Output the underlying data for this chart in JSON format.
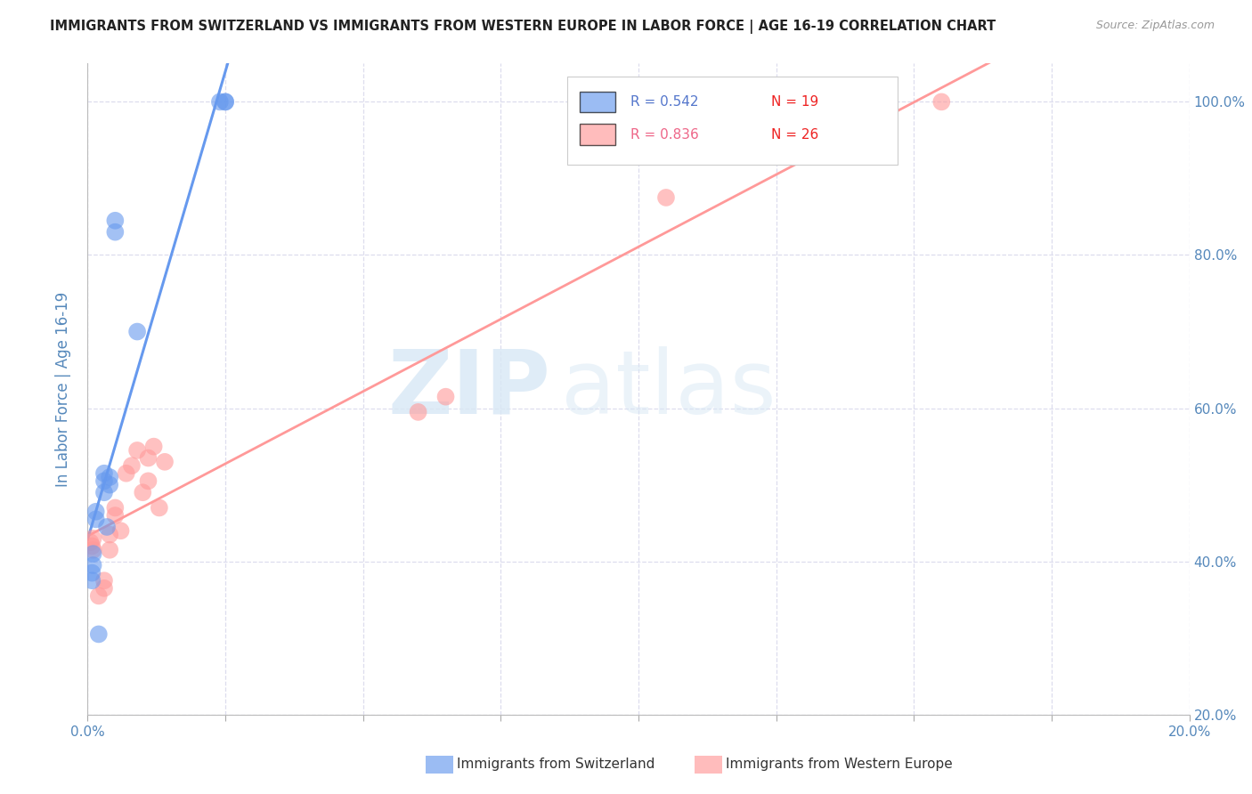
{
  "title": "IMMIGRANTS FROM SWITZERLAND VS IMMIGRANTS FROM WESTERN EUROPE IN LABOR FORCE | AGE 16-19 CORRELATION CHART",
  "source": "Source: ZipAtlas.com",
  "ylabel": "In Labor Force | Age 16-19",
  "xlim": [
    0.0,
    0.2
  ],
  "ylim": [
    0.2,
    1.05
  ],
  "x_ticks": [
    0.0,
    0.025,
    0.05,
    0.075,
    0.1,
    0.125,
    0.15,
    0.175,
    0.2
  ],
  "y_ticks": [
    0.2,
    0.4,
    0.6,
    0.8,
    1.0
  ],
  "y_tick_labels": [
    "20.0%",
    "40.0%",
    "60.0%",
    "80.0%",
    "100.0%"
  ],
  "switzerland_color": "#6699EE",
  "western_europe_color": "#FF9999",
  "switzerland_R": 0.542,
  "switzerland_N": 19,
  "western_europe_R": 0.836,
  "western_europe_N": 26,
  "watermark_zip": "ZIP",
  "watermark_atlas": "atlas",
  "legend_switzerland": "Immigrants from Switzerland",
  "legend_western_europe": "Immigrants from Western Europe",
  "switzerland_x": [
    0.0008,
    0.0008,
    0.001,
    0.001,
    0.0015,
    0.0015,
    0.002,
    0.003,
    0.003,
    0.003,
    0.0035,
    0.004,
    0.004,
    0.005,
    0.005,
    0.009,
    0.024,
    0.025,
    0.025
  ],
  "switzerland_y": [
    0.375,
    0.385,
    0.395,
    0.41,
    0.455,
    0.465,
    0.305,
    0.49,
    0.505,
    0.515,
    0.445,
    0.5,
    0.51,
    0.83,
    0.845,
    0.7,
    1.0,
    1.0,
    1.0
  ],
  "western_europe_x": [
    0.0005,
    0.0008,
    0.001,
    0.001,
    0.002,
    0.003,
    0.003,
    0.004,
    0.004,
    0.005,
    0.005,
    0.006,
    0.007,
    0.008,
    0.009,
    0.01,
    0.011,
    0.011,
    0.012,
    0.013,
    0.014,
    0.06,
    0.065,
    0.105,
    0.145,
    0.155
  ],
  "western_europe_y": [
    0.425,
    0.42,
    0.415,
    0.43,
    0.355,
    0.365,
    0.375,
    0.415,
    0.435,
    0.46,
    0.47,
    0.44,
    0.515,
    0.525,
    0.545,
    0.49,
    0.505,
    0.535,
    0.55,
    0.47,
    0.53,
    0.595,
    0.615,
    0.875,
    1.0,
    1.0
  ],
  "title_color": "#222222",
  "axis_label_color": "#5588BB",
  "tick_color": "#5588BB",
  "grid_color": "#DDDDEE",
  "legend_r_blue": "#5577CC",
  "legend_r_pink": "#EE6688",
  "legend_n_red": "#EE2222"
}
